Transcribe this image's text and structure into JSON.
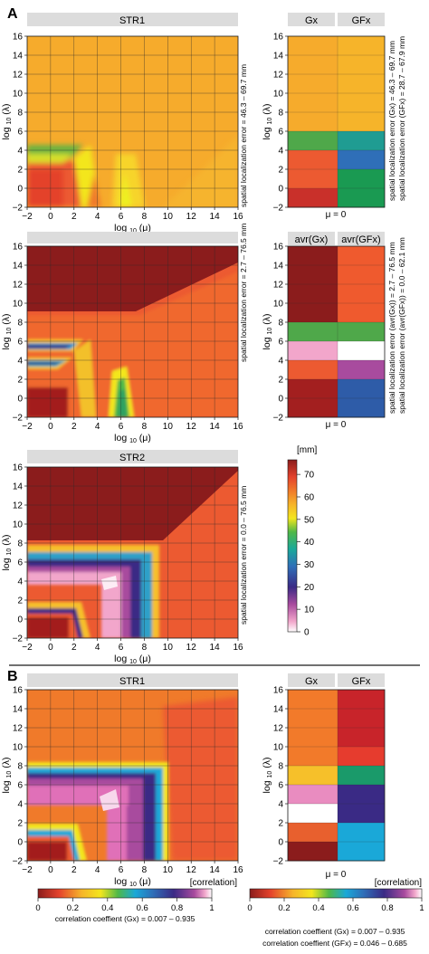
{
  "panels": {
    "A": "A",
    "B": "B"
  },
  "plot_titles": {
    "top": "STR1",
    "middle": "",
    "bottom": "STR2",
    "b_main": "STR1"
  },
  "axes": {
    "x": [
      "−2",
      "0",
      "2",
      "4",
      "6",
      "8",
      "10",
      "12",
      "14",
      "16"
    ],
    "y": [
      "16",
      "14",
      "12",
      "10",
      "8",
      "6",
      "4",
      "2",
      "0",
      "−2"
    ]
  },
  "strip_labels": {
    "top": [
      "Gx",
      "GFx"
    ],
    "middle": [
      "avr(Gx)",
      "avr(GFx)"
    ],
    "b": [
      "Gx",
      "GFx"
    ],
    "mu_zero": "μ = 0"
  },
  "side_notes": {
    "top_main": "spatial localization error = 46.3 – 69.7 mm",
    "top_strip": [
      "spatial localization error (Gx) = 46.3 – 69.7 mm",
      "spatial localization error (GFx) = 28.7 – 67.9 mm"
    ],
    "mid_main": "spatial localization error = 2.7 – 76.5 mm",
    "mid_strip": [
      "spatial localization error (avr(Gx)) = 2.7 – 76.5 mm",
      "spatial localization error (avr(GFx)) = 0.0 – 62.1 mm"
    ],
    "bottom_main": "spatial localization error = 0.0 – 76.5 mm"
  },
  "colorbar_mm": {
    "unit": "[mm]",
    "ticks": [
      "70",
      "60",
      "50",
      "40",
      "30",
      "20",
      "10",
      "0"
    ]
  },
  "colorbar_corr": {
    "unit": "[correlation]",
    "ticks": [
      "0",
      "0.2",
      "0.4",
      "0.6",
      "0.8",
      "1"
    ],
    "caption_left": "correlation coeffient (Gx) = 0.007 – 0.935",
    "caption_right": [
      "correlation coeffient (Gx) = 0.007 – 0.935",
      "correlation coeffient (GFx) = 0.046 – 0.685"
    ]
  },
  "chart_data": [
    {
      "type": "heatmap",
      "title": "STR1",
      "xlabel": "log10(μ)",
      "ylabel": "log10(λ)",
      "xlim": [
        -2,
        16
      ],
      "ylim": [
        -2,
        16
      ],
      "value_range_mm": [
        46.3,
        69.7
      ]
    },
    {
      "type": "heatmap",
      "title": "",
      "xlabel": "log10(μ)",
      "ylabel": "log10(λ)",
      "xlim": [
        -2,
        16
      ],
      "ylim": [
        -2,
        16
      ],
      "value_range_mm": [
        2.7,
        76.5
      ]
    },
    {
      "type": "heatmap",
      "title": "STR2",
      "xlabel": "log10(μ)",
      "ylabel": "log10(λ)",
      "xlim": [
        -2,
        16
      ],
      "ylim": [
        -2,
        16
      ],
      "value_range_mm": [
        0.0,
        76.5
      ]
    },
    {
      "type": "heatmap",
      "title": "STR1",
      "xlabel": "log10(μ)",
      "ylabel": "log10(λ)",
      "xlim": [
        -2,
        16
      ],
      "ylim": [
        -2,
        16
      ],
      "value_range_correlation": [
        0.007,
        0.935
      ]
    },
    {
      "type": "heatmap",
      "title": "μ = 0",
      "columns": [
        "Gx",
        "GFx"
      ],
      "ylim": [
        -2,
        16
      ],
      "rows_top_to_bottom": [
        "14–16",
        "12–14",
        "10–12",
        "8–10",
        "6–8",
        "4–6",
        "2–4",
        "0–2",
        "−2–0"
      ],
      "colors": {
        "Gx": [
          "#f6ab2c",
          "#f6ab2c",
          "#f6ab2c",
          "#f6ab2c",
          "#f6ab2c",
          "#4fa84a",
          "#ec5a31",
          "#ec5a31",
          "#c9302a"
        ],
        "GFx": [
          "#f6b42a",
          "#f6b42a",
          "#f6b42a",
          "#f6b42a",
          "#f6b42a",
          "#1f9c92",
          "#2f6fb8",
          "#1a9a52",
          "#1a9a52"
        ]
      }
    },
    {
      "type": "heatmap",
      "title": "μ = 0",
      "columns": [
        "avr(Gx)",
        "avr(GFx)"
      ],
      "ylim": [
        -2,
        16
      ],
      "rows_top_to_bottom": [
        "14–16",
        "12–14",
        "10–12",
        "8–10",
        "6–8",
        "4–6",
        "2–4",
        "0–2",
        "−2–0"
      ],
      "colors": {
        "avr(Gx)": [
          "#8b1c1c",
          "#8b1c1c",
          "#8b1c1c",
          "#8b1c1c",
          "#4fa84a",
          "#f2a6cb",
          "#ec5a31",
          "#a31f1f",
          "#a31f1f"
        ],
        "avr(GFx)": [
          "#ef5a2e",
          "#ef5a2e",
          "#ef5a2e",
          "#ef5a2e",
          "#4fa84a",
          "#ffffff",
          "#a84b9e",
          "#2e5ca8",
          "#2e5ca8"
        ]
      }
    },
    {
      "type": "heatmap",
      "title": "μ = 0",
      "columns": [
        "Gx",
        "GFx"
      ],
      "ylim": [
        -2,
        16
      ],
      "rows_top_to_bottom": [
        "14–16",
        "12–14",
        "10–12",
        "8–10",
        "6–8",
        "4–6",
        "2–4",
        "0–2",
        "−2–0"
      ],
      "colors": {
        "Gx": [
          "#f27a2a",
          "#f27a2a",
          "#f27a2a",
          "#f27a2a",
          "#f6c02a",
          "#e98cc0",
          "#ffffff",
          "#e8602e",
          "#8b1c1c"
        ],
        "GFx": [
          "#c8242a",
          "#c8242a",
          "#c8242a",
          "#e63c2e",
          "#1a9a6a",
          "#3a2a85",
          "#3a2a85",
          "#1aa8d8",
          "#1aa8d8"
        ]
      }
    }
  ]
}
